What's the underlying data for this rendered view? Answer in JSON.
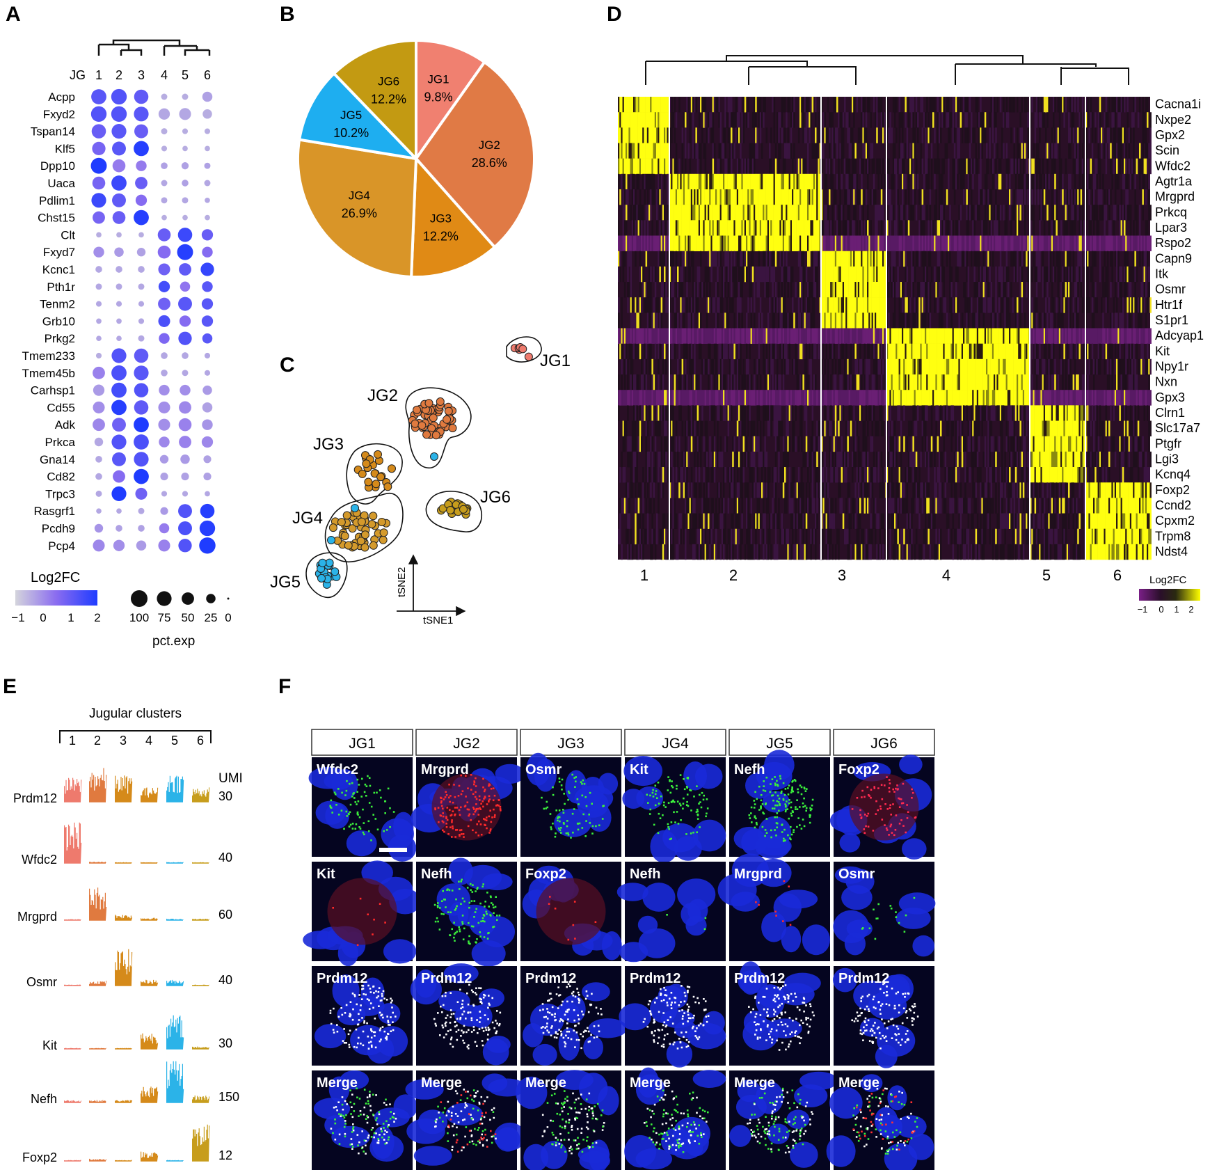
{
  "panels": {
    "A": "A",
    "B": "B",
    "C": "C",
    "D": "D",
    "E": "E",
    "F": "F"
  },
  "colors": {
    "JG1": "#ee7a6d",
    "JG2": "#e07a3f",
    "JG3": "#d58a1a",
    "JG4": "#d49a2c",
    "JG5": "#2bb3e8",
    "JG6": "#c79d1c",
    "heat_low": "#3b0a3f",
    "heat_mid": "#2a1a1a",
    "heat_high": "#ffff00",
    "dot_low": "#c9c9d8",
    "dot_high": "#2a3bff",
    "dapi": "#1a2dd8"
  },
  "panelA": {
    "title_prefix": "JG",
    "clusters": [
      "1",
      "2",
      "3",
      "4",
      "5",
      "6"
    ],
    "genes": [
      "Acpp",
      "Fxyd2",
      "Tspan14",
      "Klf5",
      "Dpp10",
      "Uaca",
      "Pdlim1",
      "Chst15",
      "Clt",
      "Fxyd7",
      "Kcnc1",
      "Pth1r",
      "Tenm2",
      "Grb10",
      "Prkg2",
      "Tmem233",
      "Tmem45b",
      "Carhsp1",
      "Cd55",
      "Adk",
      "Prkca",
      "Gna14",
      "Cd82",
      "Trpc3",
      "Rasgrf1",
      "Pcdh9",
      "Pcp4"
    ],
    "pct": [
      [
        80,
        85,
        70,
        8,
        8,
        30
      ],
      [
        85,
        85,
        75,
        40,
        45,
        25
      ],
      [
        70,
        75,
        65,
        8,
        6,
        6
      ],
      [
        60,
        65,
        80,
        6,
        5,
        5
      ],
      [
        90,
        55,
        35,
        10,
        12,
        8
      ],
      [
        55,
        80,
        50,
        8,
        10,
        8
      ],
      [
        75,
        65,
        40,
        8,
        8,
        5
      ],
      [
        50,
        55,
        80,
        5,
        5,
        5
      ],
      [
        5,
        5,
        5,
        55,
        70,
        40
      ],
      [
        35,
        25,
        20,
        55,
        90,
        35
      ],
      [
        10,
        10,
        10,
        45,
        50,
        60
      ],
      [
        8,
        8,
        8,
        40,
        30,
        35
      ],
      [
        6,
        6,
        6,
        50,
        65,
        40
      ],
      [
        5,
        5,
        6,
        45,
        40,
        40
      ],
      [
        5,
        5,
        8,
        35,
        60,
        30
      ],
      [
        6,
        75,
        70,
        10,
        10,
        6
      ],
      [
        50,
        80,
        75,
        10,
        8,
        6
      ],
      [
        40,
        80,
        70,
        35,
        35,
        25
      ],
      [
        45,
        80,
        70,
        45,
        50,
        30
      ],
      [
        50,
        65,
        80,
        45,
        55,
        35
      ],
      [
        20,
        75,
        80,
        35,
        50,
        40
      ],
      [
        10,
        65,
        75,
        20,
        25,
        15
      ],
      [
        10,
        50,
        80,
        15,
        15,
        15
      ],
      [
        8,
        75,
        45,
        6,
        6,
        5
      ],
      [
        5,
        5,
        8,
        15,
        65,
        70
      ],
      [
        20,
        10,
        10,
        30,
        65,
        85
      ],
      [
        45,
        40,
        30,
        45,
        60,
        95
      ]
    ],
    "fc": [
      [
        1.2,
        1.3,
        1.1,
        -0.5,
        -0.5,
        -0.3
      ],
      [
        1.3,
        1.3,
        1.2,
        -0.4,
        -0.4,
        -0.5
      ],
      [
        1.0,
        1.2,
        1.0,
        -0.5,
        -0.5,
        -0.5
      ],
      [
        0.8,
        1.2,
        1.9,
        -0.5,
        -0.5,
        -0.5
      ],
      [
        2.0,
        0.3,
        0.3,
        -0.3,
        -0.3,
        -0.3
      ],
      [
        0.8,
        1.6,
        1.0,
        -0.4,
        -0.3,
        -0.4
      ],
      [
        1.6,
        1.1,
        0.6,
        -0.4,
        -0.4,
        -0.4
      ],
      [
        0.8,
        1.0,
        1.9,
        -0.5,
        -0.5,
        -0.5
      ],
      [
        -0.5,
        -0.5,
        -0.5,
        1.0,
        1.6,
        1.0
      ],
      [
        0.0,
        -0.2,
        -0.3,
        0.6,
        1.9,
        0.6
      ],
      [
        -0.4,
        -0.4,
        -0.4,
        0.9,
        1.1,
        1.7
      ],
      [
        -0.4,
        -0.4,
        -0.4,
        1.5,
        0.4,
        1.2
      ],
      [
        -0.4,
        -0.4,
        -0.4,
        0.9,
        1.2,
        1.2
      ],
      [
        -0.4,
        -0.4,
        -0.4,
        1.4,
        0.6,
        1.2
      ],
      [
        -0.4,
        -0.4,
        -0.4,
        0.7,
        1.3,
        1.2
      ],
      [
        -0.5,
        1.3,
        1.1,
        -0.4,
        -0.4,
        -0.4
      ],
      [
        0.2,
        1.4,
        1.2,
        -0.4,
        -0.4,
        -0.4
      ],
      [
        -0.2,
        1.5,
        1.3,
        0.0,
        0.0,
        -0.2
      ],
      [
        0.0,
        1.9,
        1.1,
        0.0,
        0.1,
        -0.3
      ],
      [
        0.1,
        0.9,
        2.0,
        0.0,
        0.2,
        -0.1
      ],
      [
        -0.4,
        1.3,
        1.4,
        0.1,
        0.2,
        0.1
      ],
      [
        -0.4,
        1.2,
        1.3,
        -0.2,
        -0.2,
        -0.3
      ],
      [
        -0.4,
        0.6,
        2.0,
        -0.3,
        -0.3,
        -0.3
      ],
      [
        -0.4,
        2.0,
        0.9,
        -0.4,
        -0.4,
        -0.4
      ],
      [
        -0.4,
        -0.4,
        -0.4,
        -0.2,
        1.3,
        1.9
      ],
      [
        -0.1,
        -0.3,
        -0.3,
        0.3,
        1.4,
        1.9
      ],
      [
        0.1,
        0.0,
        -0.2,
        0.2,
        1.3,
        2.0
      ]
    ],
    "legend_color_title": "Log2FC",
    "legend_color_ticks": [
      "−1",
      "0",
      "1",
      "2"
    ],
    "legend_size_values": [
      100,
      75,
      50,
      25,
      0
    ],
    "legend_size_labels": [
      "100",
      "75",
      "50",
      "25",
      "0"
    ],
    "legend_size_title": "pct.exp"
  },
  "chart_data": [
    {
      "type": "pie",
      "labels": [
        "JG1",
        "JG2",
        "JG3",
        "JG4",
        "JG5",
        "JG6"
      ],
      "values": [
        9.8,
        28.6,
        12.2,
        26.9,
        10.2,
        12.2
      ],
      "value_labels": [
        "9.8%",
        "28.6%",
        "12.2%",
        "26.9%",
        "10.2%",
        "12.2%"
      ],
      "colors": [
        "#f08070",
        "#e07a45",
        "#e08a15",
        "#d99528",
        "#1eaef0",
        "#c39a12"
      ]
    }
  ],
  "panelC": {
    "cluster_labels": [
      "JG1",
      "JG2",
      "JG3",
      "JG4",
      "JG5",
      "JG6"
    ],
    "axis_x": "tSNE1",
    "axis_y": "tSNE2"
  },
  "panelD": {
    "genes": [
      "Cacna1i",
      "Nxpe2",
      "Gpx2",
      "Scin",
      "Wfdc2",
      "Agtr1a",
      "Mrgprd",
      "Prkcq",
      "Lpar3",
      "Rspo2",
      "Capn9",
      "Itk",
      "Osmr",
      "Htr1f",
      "S1pr1",
      "Adcyap1",
      "Kit",
      "Npy1r",
      "Nxn",
      "Gpx3",
      "Clrn1",
      "Slc17a7",
      "Ptgfr",
      "Lgi3",
      "Kcnq4",
      "Foxp2",
      "Ccnd2",
      "Cpxm2",
      "Trpm8",
      "Ndst4"
    ],
    "clusters": [
      "1",
      "2",
      "3",
      "4",
      "5",
      "6"
    ],
    "legend_title": "Log2FC",
    "legend_ticks": [
      "−1",
      "0",
      "1",
      "2"
    ]
  },
  "panelE": {
    "title": "Jugular clusters",
    "clusters": [
      "1",
      "2",
      "3",
      "4",
      "5",
      "6"
    ],
    "umi_label": "UMI",
    "genes": [
      "Prdm12",
      "Wfdc2",
      "Mrgprd",
      "Osmr",
      "Kit",
      "Nefh",
      "Foxp2"
    ],
    "umi": [
      "30",
      "40",
      "60",
      "40",
      "30",
      "150",
      "12"
    ]
  },
  "panelF": {
    "columns": [
      "JG1",
      "JG2",
      "JG3",
      "JG4",
      "JG5",
      "JG6"
    ],
    "rows": [
      [
        "Wfdc2",
        "Mrgprd",
        "Osmr",
        "Kit",
        "Nefh",
        "Foxp2"
      ],
      [
        "Kit",
        "Nefh",
        "Foxp2",
        "Nefh",
        "Mrgprd",
        "Osmr"
      ],
      [
        "Prdm12",
        "Prdm12",
        "Prdm12",
        "Prdm12",
        "Prdm12",
        "Prdm12"
      ],
      [
        "Merge",
        "Merge",
        "Merge",
        "Merge",
        "Merge",
        "Merge"
      ]
    ]
  }
}
